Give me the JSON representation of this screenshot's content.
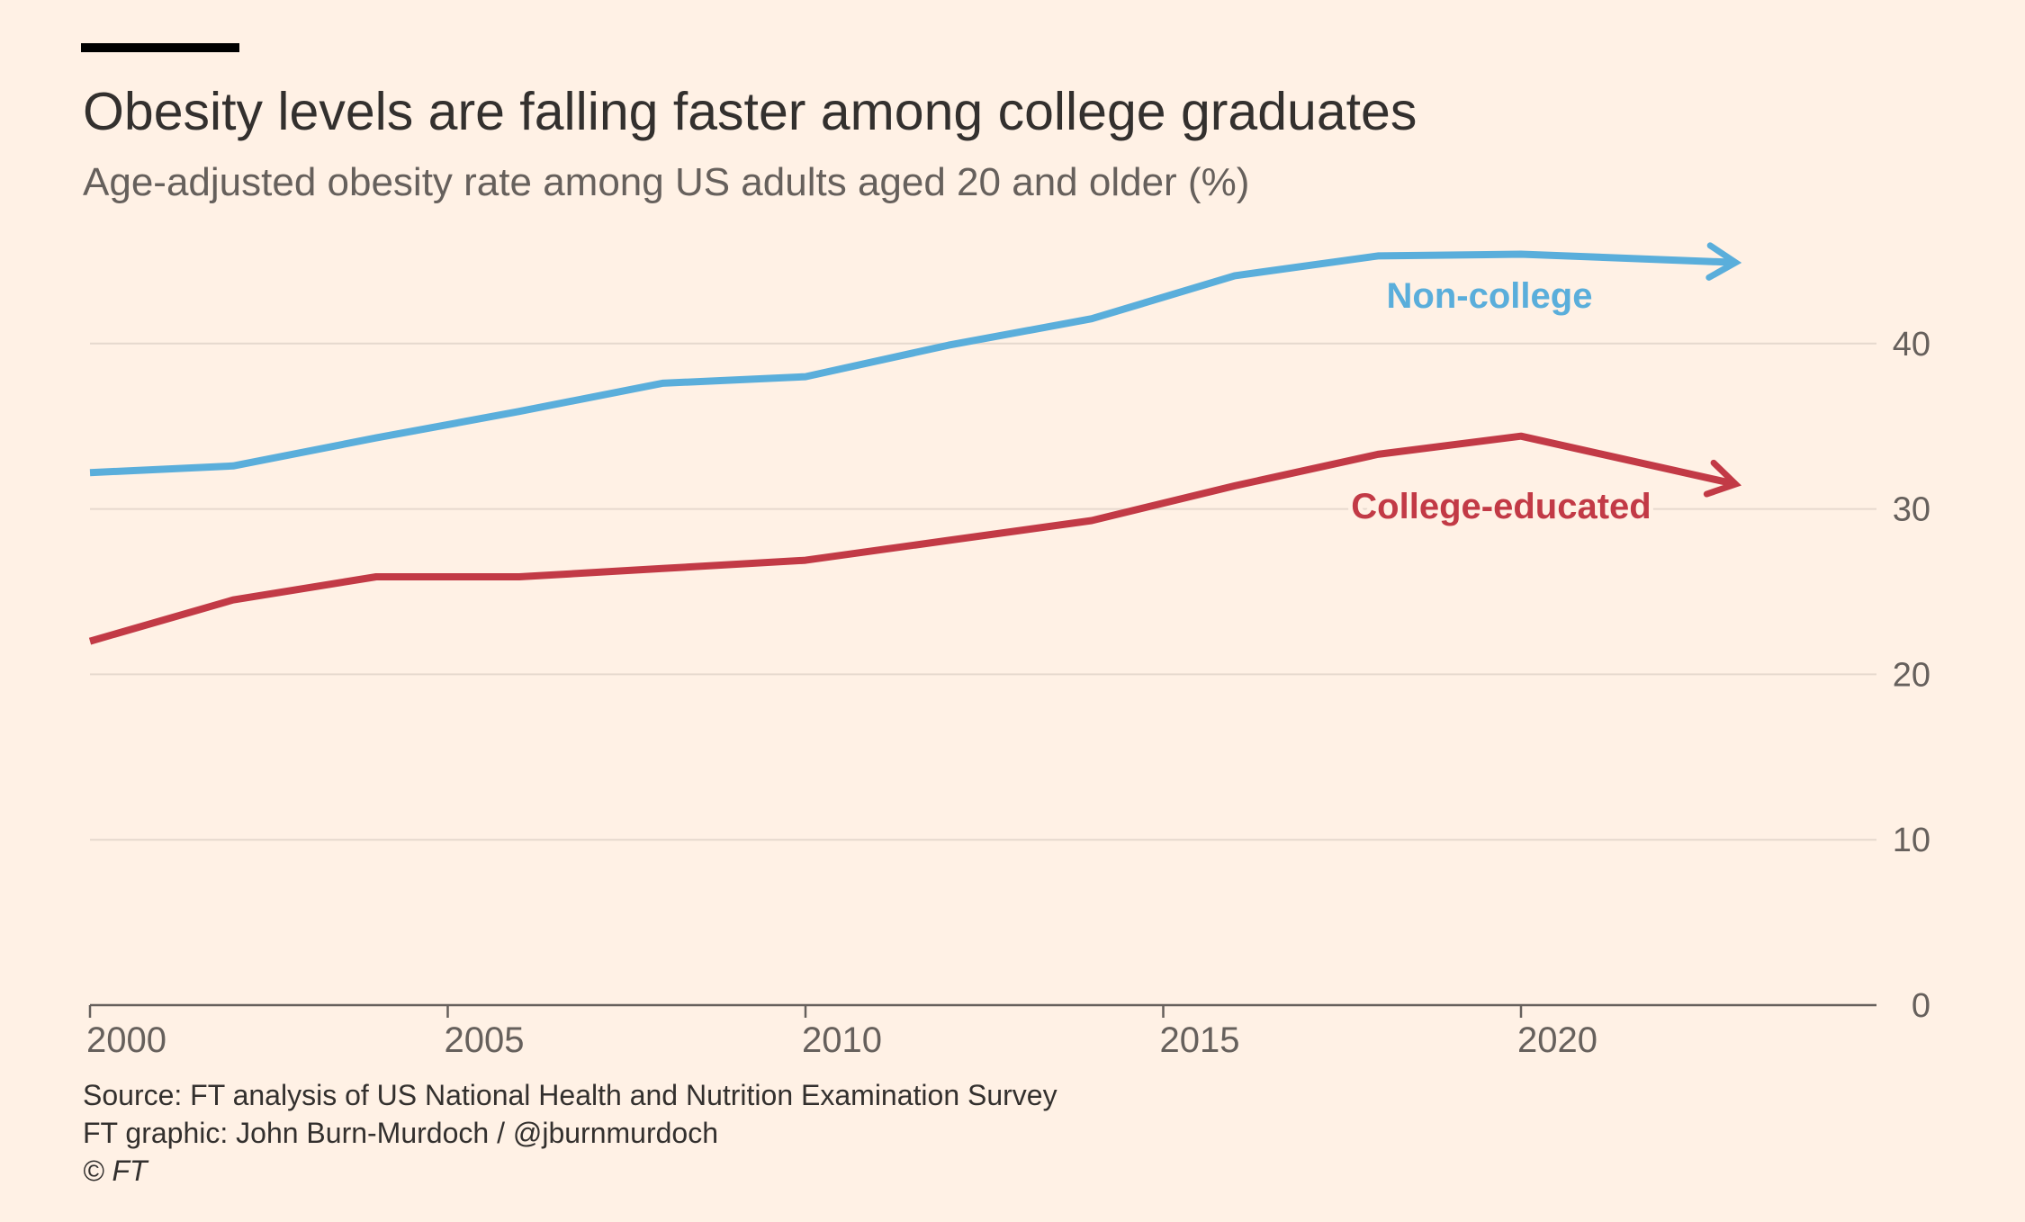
{
  "header": {
    "title": "Obesity levels are falling faster among college graduates",
    "subtitle": "Age-adjusted obesity rate among US adults aged 20 and older (%)"
  },
  "footer": {
    "source": "Source: FT analysis of US National Health and Nutrition Examination Survey",
    "credit": "FT graphic: John Burn-Murdoch / @jburnmurdoch",
    "copyright": "© FT"
  },
  "colors": {
    "background": "#fff1e5",
    "non_college": "#5aaedb",
    "college": "#c23a46",
    "gridline": "#e6d9ce",
    "axis": "#66605c",
    "tick_text": "#66605c"
  },
  "chart_data": {
    "type": "line",
    "title": "Obesity levels are falling faster among college graduates",
    "subtitle": "Age-adjusted obesity rate among US adults aged 20 and older (%)",
    "xlabel": "",
    "ylabel": "",
    "xlim": [
      2000,
      2025
    ],
    "ylim": [
      0,
      45
    ],
    "x_ticks": [
      2000,
      2005,
      2010,
      2015,
      2020
    ],
    "y_ticks": [
      0,
      10,
      20,
      30,
      40
    ],
    "y_axis_position": "right",
    "grid": true,
    "series": [
      {
        "name": "Non-college",
        "color": "#5aaedb",
        "points": [
          {
            "x": 2000,
            "y": 32.2
          },
          {
            "x": 2002,
            "y": 32.6
          },
          {
            "x": 2004,
            "y": 34.3
          },
          {
            "x": 2006,
            "y": 35.9
          },
          {
            "x": 2008,
            "y": 37.6
          },
          {
            "x": 2010,
            "y": 38.0
          },
          {
            "x": 2012,
            "y": 39.9
          },
          {
            "x": 2014,
            "y": 41.5
          },
          {
            "x": 2016,
            "y": 44.1
          },
          {
            "x": 2018,
            "y": 45.3
          },
          {
            "x": 2020,
            "y": 45.4
          },
          {
            "x": 2023,
            "y": 44.9
          }
        ]
      },
      {
        "name": "College-educated",
        "color": "#c23a46",
        "points": [
          {
            "x": 2000,
            "y": 22.0
          },
          {
            "x": 2002,
            "y": 24.5
          },
          {
            "x": 2004,
            "y": 25.9
          },
          {
            "x": 2006,
            "y": 25.9
          },
          {
            "x": 2008,
            "y": 26.4
          },
          {
            "x": 2010,
            "y": 26.9
          },
          {
            "x": 2012,
            "y": 28.1
          },
          {
            "x": 2014,
            "y": 29.3
          },
          {
            "x": 2016,
            "y": 31.4
          },
          {
            "x": 2018,
            "y": 33.3
          },
          {
            "x": 2020,
            "y": 34.4
          },
          {
            "x": 2023,
            "y": 31.5
          }
        ]
      }
    ]
  }
}
